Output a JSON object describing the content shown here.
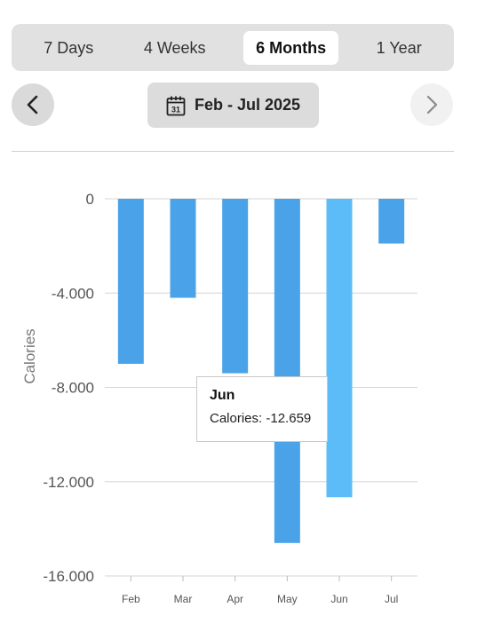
{
  "range_tabs": [
    {
      "label": "7 Days",
      "active": false
    },
    {
      "label": "4 Weeks",
      "active": false
    },
    {
      "label": "6 Months",
      "active": true
    },
    {
      "label": "1 Year",
      "active": false
    }
  ],
  "date_selector": {
    "label": "Feb - Jul 2025",
    "icon": "calendar-icon",
    "icon_day": "31"
  },
  "nav": {
    "prev_icon": "chevron-left-icon",
    "next_icon": "chevron-right-icon",
    "next_enabled": false
  },
  "tooltip": {
    "title": "Jun",
    "series_label": "Calories",
    "value": "-12.659"
  },
  "chart_data": {
    "type": "bar",
    "categories": [
      "Feb",
      "Mar",
      "Apr",
      "May",
      "Jun",
      "Jul"
    ],
    "series": [
      {
        "values": [
          -7000,
          -4200,
          -7400,
          -14600,
          -12659,
          -1900
        ]
      }
    ],
    "ylabel": "Calories",
    "xlabel": "",
    "ylim": [
      -16000,
      0
    ],
    "yticks": [
      0,
      -4000,
      -8000,
      -12000,
      -16000
    ],
    "ytick_labels": [
      "0",
      "-4.000",
      "-8.000",
      "-12.000",
      "-16.000"
    ],
    "grid": true,
    "highlighted_category": "Jun",
    "colors": {
      "bar": "#4aa3e8",
      "bar_highlight": "#5bbcf7",
      "grid": "#d6d6d6",
      "axis_text": "#555555"
    }
  }
}
